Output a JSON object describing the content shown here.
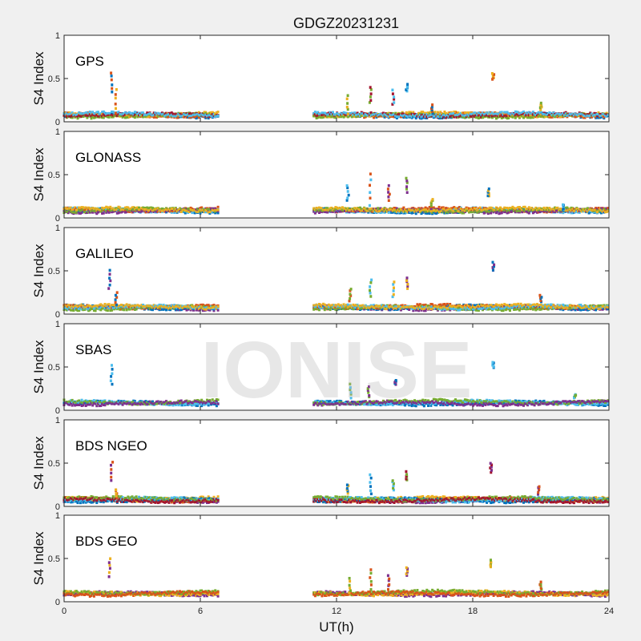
{
  "chart_data": {
    "type": "scatter",
    "title": "GDGZ20231231",
    "xlabel": "UT(h)",
    "xlim": [
      0,
      24
    ],
    "xticks": [
      "0",
      "6",
      "12",
      "18",
      "24"
    ],
    "xtick_values": [
      0,
      6,
      12,
      18,
      24
    ],
    "ylim": [
      0,
      1
    ],
    "yticks": [
      "0",
      "0.5",
      "1"
    ],
    "ytick_values": [
      0,
      0.5,
      1
    ],
    "grid": false,
    "watermark": "IONISE",
    "data_gap_hours": [
      6.8,
      11
    ],
    "colors": [
      "#0072BD",
      "#D95319",
      "#EDB120",
      "#7E2F8E",
      "#77AC30",
      "#4DBEEE",
      "#A2142F"
    ],
    "panels": [
      {
        "name": "GPS",
        "ylabel": "S4 Index",
        "baseline": 0.07,
        "colors": [
          "#0072BD",
          "#D95319",
          "#EDB120",
          "#77AC30",
          "#A2142F",
          "#4DBEEE"
        ],
        "spikes": [
          [
            2.1,
            0.57,
            0.35
          ],
          [
            2.3,
            0.38,
            0.1
          ],
          [
            12.5,
            0.3,
            0.1
          ],
          [
            13.5,
            0.4,
            0.22
          ],
          [
            14.5,
            0.36,
            0.2
          ],
          [
            15.1,
            0.43,
            0.35
          ],
          [
            16.2,
            0.2,
            0.1
          ],
          [
            18.9,
            0.56,
            0.5
          ],
          [
            21.0,
            0.22,
            0.15
          ]
        ]
      },
      {
        "name": "GLONASS",
        "ylabel": "S4 Index",
        "baseline": 0.08,
        "colors": [
          "#0072BD",
          "#4DBEEE",
          "#D95319",
          "#7E2F8E",
          "#77AC30",
          "#EDB120"
        ],
        "spikes": [
          [
            12.5,
            0.38,
            0.2
          ],
          [
            13.5,
            0.52,
            0.15
          ],
          [
            14.3,
            0.38,
            0.2
          ],
          [
            15.1,
            0.47,
            0.3
          ],
          [
            16.2,
            0.22,
            0.15
          ],
          [
            18.7,
            0.33,
            0.25
          ],
          [
            22.0,
            0.15,
            0.1
          ]
        ]
      },
      {
        "name": "GALILEO",
        "ylabel": "S4 Index",
        "baseline": 0.07,
        "colors": [
          "#7E2F8E",
          "#0072BD",
          "#D95319",
          "#77AC30",
          "#4DBEEE",
          "#EDB120"
        ],
        "spikes": [
          [
            2.0,
            0.5,
            0.3
          ],
          [
            2.3,
            0.25,
            0.1
          ],
          [
            12.6,
            0.3,
            0.15
          ],
          [
            13.5,
            0.4,
            0.2
          ],
          [
            14.5,
            0.38,
            0.2
          ],
          [
            15.1,
            0.42,
            0.3
          ],
          [
            18.9,
            0.6,
            0.5
          ],
          [
            21.0,
            0.22,
            0.15
          ]
        ]
      },
      {
        "name": "SBAS",
        "ylabel": "S4 Index",
        "baseline": 0.08,
        "colors": [
          "#0072BD",
          "#4DBEEE",
          "#77AC30",
          "#7E2F8E"
        ],
        "spikes": [
          [
            2.1,
            0.52,
            0.3
          ],
          [
            12.6,
            0.3,
            0.15
          ],
          [
            13.4,
            0.28,
            0.15
          ],
          [
            14.6,
            0.35,
            0.3
          ],
          [
            18.9,
            0.55,
            0.5
          ],
          [
            22.5,
            0.18,
            0.15
          ]
        ]
      },
      {
        "name": "BDS NGEO",
        "ylabel": "S4 Index",
        "baseline": 0.07,
        "colors": [
          "#7E2F8E",
          "#D95319",
          "#EDB120",
          "#0072BD",
          "#4DBEEE",
          "#77AC30",
          "#A2142F"
        ],
        "spikes": [
          [
            2.1,
            0.52,
            0.3
          ],
          [
            2.3,
            0.2,
            0.1
          ],
          [
            12.5,
            0.26,
            0.15
          ],
          [
            13.5,
            0.37,
            0.15
          ],
          [
            14.5,
            0.3,
            0.2
          ],
          [
            15.1,
            0.4,
            0.3
          ],
          [
            18.8,
            0.5,
            0.4
          ],
          [
            20.9,
            0.24,
            0.15
          ]
        ]
      },
      {
        "name": "BDS GEO",
        "ylabel": "S4 Index",
        "baseline": 0.09,
        "colors": [
          "#7E2F8E",
          "#EDB120",
          "#77AC30",
          "#D95319"
        ],
        "spikes": [
          [
            2.0,
            0.5,
            0.3
          ],
          [
            12.6,
            0.27,
            0.1
          ],
          [
            13.5,
            0.37,
            0.15
          ],
          [
            14.3,
            0.3,
            0.15
          ],
          [
            15.1,
            0.4,
            0.3
          ],
          [
            18.8,
            0.48,
            0.4
          ],
          [
            21.0,
            0.24,
            0.15
          ]
        ]
      }
    ]
  }
}
